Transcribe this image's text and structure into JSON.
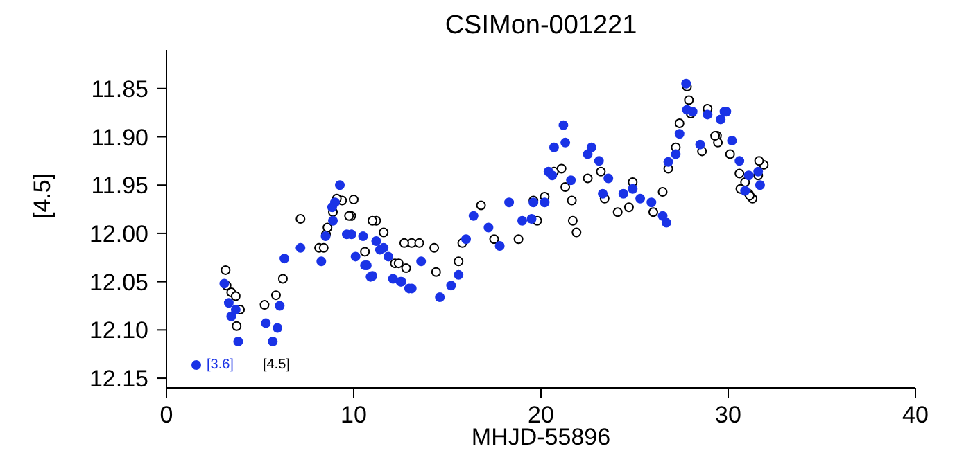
{
  "chart_data": {
    "type": "scatter",
    "title": "CSIMon-001221",
    "xlabel": "MHJD-55896",
    "ylabel": "[4.5]",
    "xlim": [
      0,
      40
    ],
    "xticks": [
      0,
      10,
      20,
      30,
      40
    ],
    "ylim": [
      12.16,
      11.81
    ],
    "yticks": [
      11.85,
      {
        "value": 11.9,
        "label": "11.90"
      },
      11.95,
      {
        "value": 12.0,
        "label": "12.00"
      },
      12.05,
      {
        "value": 12.1,
        "label": "12.10"
      },
      12.15
    ],
    "grid": false,
    "legend": "bottom left",
    "marker": "circle",
    "series": [
      {
        "name": "[4.5]",
        "color": "#000000",
        "x": [
          3.16,
          3.21,
          3.46,
          3.7,
          3.93,
          3.75,
          5.24,
          5.85,
          6.22,
          7.16,
          8.15,
          8.52,
          8.89,
          9.38,
          9.87,
          10.6,
          11.2,
          11.6,
          12.2,
          12.8,
          13.1,
          8.4,
          8.6,
          9.1,
          10.0,
          9.75,
          11.0,
          12.7,
          12.4,
          13.5,
          14.3,
          14.4,
          15.6,
          15.8,
          16.8,
          17.5,
          18.8,
          19.8,
          20.2,
          19.6,
          20.7,
          21.1,
          21.3,
          21.7,
          21.9,
          21.65,
          22.5,
          23.2,
          23.4,
          24.1,
          24.9,
          24.7,
          26.0,
          26.5,
          26.8,
          27.2,
          27.4,
          27.8,
          27.9,
          28.0,
          28.6,
          28.9,
          29.4,
          29.45,
          30.1,
          30.6,
          30.9,
          31.3,
          31.9,
          31.6,
          31.1,
          29.3,
          30.65,
          31.15,
          31.65
        ],
        "values": [
          12.038,
          12.054,
          12.061,
          12.065,
          12.079,
          12.096,
          12.074,
          12.064,
          12.047,
          11.985,
          12.015,
          12.001,
          11.978,
          11.966,
          11.982,
          12.019,
          11.987,
          11.999,
          12.031,
          12.036,
          12.01,
          12.015,
          11.994,
          11.964,
          11.965,
          11.982,
          11.987,
          12.01,
          12.031,
          12.01,
          12.015,
          12.04,
          12.029,
          12.01,
          11.971,
          12.006,
          12.006,
          11.987,
          11.962,
          11.966,
          11.936,
          11.933,
          11.952,
          11.987,
          11.999,
          11.966,
          11.943,
          11.936,
          11.964,
          11.978,
          11.947,
          11.973,
          11.978,
          11.957,
          11.933,
          11.911,
          11.886,
          11.848,
          11.862,
          11.876,
          11.915,
          11.871,
          11.899,
          11.906,
          11.918,
          11.938,
          11.947,
          11.964,
          11.929,
          11.94,
          11.959,
          11.899,
          11.954,
          11.961,
          11.925
        ]
      },
      {
        "name": "[3.6]",
        "color": "#1a33e6",
        "x": [
          3.09,
          3.33,
          3.46,
          3.83,
          3.7,
          5.31,
          5.68,
          5.93,
          6.05,
          6.3,
          7.16,
          8.27,
          8.5,
          8.89,
          9.0,
          9.88,
          10.1,
          10.7,
          10.9,
          11.2,
          11.6,
          11.85,
          12.5,
          12.96,
          9.26,
          8.85,
          9.63,
          10.5,
          10.6,
          11.4,
          11.0,
          12.1,
          12.55,
          13.1,
          13.6,
          14.6,
          15.2,
          15.6,
          16.0,
          16.4,
          17.2,
          17.8,
          18.3,
          19.0,
          19.6,
          20.4,
          19.5,
          20.2,
          20.6,
          20.7,
          21.2,
          21.3,
          21.6,
          22.5,
          22.7,
          23.1,
          23.6,
          23.3,
          24.4,
          24.9,
          25.3,
          25.9,
          26.5,
          26.7,
          26.8,
          27.2,
          27.4,
          27.8,
          28.1,
          28.5,
          28.9,
          29.6,
          29.9,
          30.2,
          30.6,
          31.1,
          30.9,
          31.6,
          31.7,
          27.75,
          29.8
        ],
        "values": [
          12.052,
          12.072,
          12.086,
          12.112,
          12.079,
          12.093,
          12.112,
          12.098,
          12.075,
          12.026,
          12.015,
          12.029,
          12.003,
          11.987,
          11.968,
          12.001,
          12.024,
          12.033,
          12.045,
          12.008,
          12.015,
          12.024,
          12.05,
          12.057,
          11.95,
          11.973,
          12.001,
          12.003,
          12.033,
          12.017,
          12.044,
          12.047,
          12.05,
          12.057,
          12.029,
          12.066,
          12.054,
          12.043,
          12.006,
          11.982,
          11.994,
          12.013,
          11.968,
          11.987,
          11.968,
          11.936,
          11.985,
          11.968,
          11.94,
          11.911,
          11.888,
          11.906,
          11.945,
          11.918,
          11.911,
          11.925,
          11.943,
          11.959,
          11.959,
          11.954,
          11.964,
          11.968,
          11.982,
          11.989,
          11.926,
          11.918,
          11.897,
          11.872,
          11.874,
          11.908,
          11.877,
          11.882,
          11.874,
          11.904,
          11.925,
          11.94,
          11.956,
          11.936,
          11.95,
          11.845,
          11.874
        ]
      }
    ]
  }
}
